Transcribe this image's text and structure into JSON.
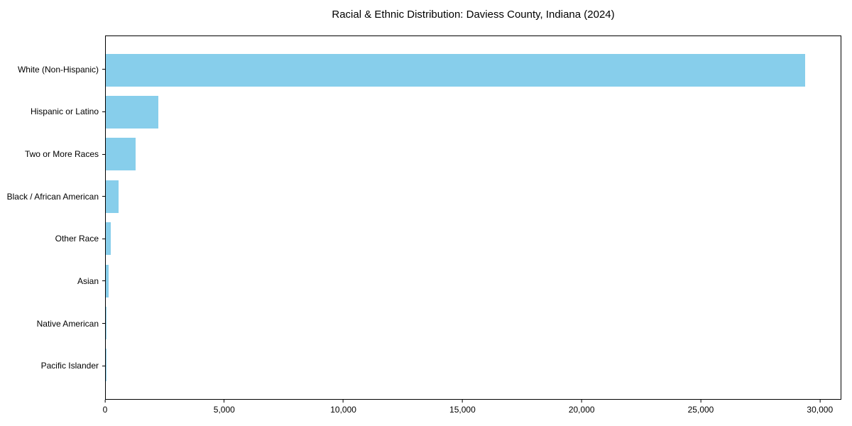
{
  "chart_data": {
    "type": "bar",
    "orientation": "horizontal",
    "title": "Racial & Ethnic Distribution: Daviess County, Indiana (2024)",
    "categories": [
      "White (Non-Hispanic)",
      "Hispanic or Latino",
      "Two or More Races",
      "Black / African American",
      "Other Race",
      "Asian",
      "Native American",
      "Pacific Islander"
    ],
    "values": [
      29400,
      2200,
      1250,
      550,
      220,
      110,
      40,
      10
    ],
    "xlabel": "",
    "ylabel": "",
    "xlim": [
      0,
      30900
    ],
    "xticks": [
      0,
      5000,
      10000,
      15000,
      20000,
      25000,
      30000
    ],
    "xtick_labels": [
      "0",
      "5,000",
      "10,000",
      "15,000",
      "20,000",
      "25,000",
      "30,000"
    ],
    "bar_color": "#87CEEB",
    "spine_color": "#000000",
    "background_color": "#ffffff",
    "grid": false,
    "legend": null
  }
}
